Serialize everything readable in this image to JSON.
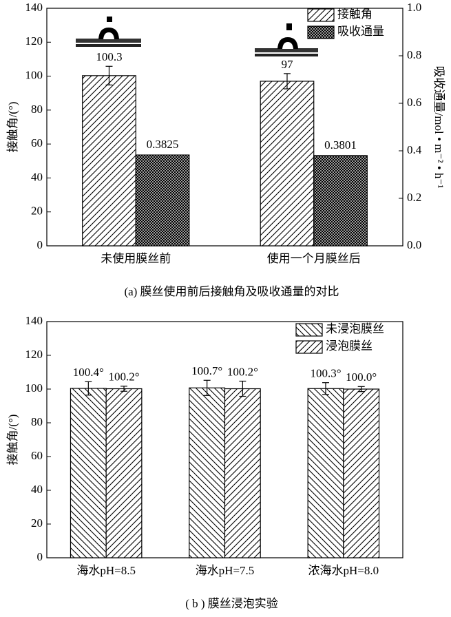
{
  "chart_data": [
    {
      "type": "bar",
      "caption": "(a) 膜丝使用前后接触角及吸收通量的对比",
      "ylabel": "接触角/(°)",
      "y2label": "吸收通量/mol • m⁻² • h⁻¹",
      "categories": [
        "未使用膜丝前",
        "使用一个月膜丝后"
      ],
      "series": [
        {
          "name": "接触角",
          "color": "#000000",
          "hatch": "/",
          "values": [
            100.3,
            97
          ],
          "errors": [
            5.5,
            4.5
          ]
        },
        {
          "name": "吸收通量",
          "color": "#000000",
          "hatch": "x",
          "axis": "y2",
          "values": [
            0.3825,
            0.3801
          ]
        }
      ],
      "ylim": [
        0,
        140
      ],
      "yticks": [
        0,
        20,
        40,
        60,
        80,
        100,
        120,
        140
      ],
      "y2lim": [
        0,
        1
      ],
      "y2ticks": [
        {
          "value": 0,
          "label": "0.0"
        },
        0.2,
        0.4,
        0.6,
        0.8,
        {
          "value": 1,
          "label": "1.0"
        }
      ],
      "legend": "upper right"
    },
    {
      "type": "bar",
      "caption": "( b ) 膜丝浸泡实验",
      "ylabel": "接触角/(°)",
      "categories": [
        "海水pH=8.5",
        "海水pH=7.5",
        "浓海水pH=8.0"
      ],
      "series": [
        {
          "name": "未浸泡膜丝",
          "color": "#000000",
          "hatch": "\\",
          "values": [
            100.4,
            100.7,
            100.3
          ],
          "value_labels": [
            "100.4°",
            "100.7°",
            "100.3°"
          ],
          "errors": [
            4,
            4.5,
            3.5
          ]
        },
        {
          "name": "浸泡膜丝",
          "color": "#000000",
          "hatch": "/",
          "values": [
            100.2,
            100.2,
            100.0
          ],
          "value_labels": [
            "100.2°",
            "100.2°",
            "100.0°"
          ],
          "errors": [
            1.5,
            4.5,
            1.5
          ]
        }
      ],
      "ylim": [
        0,
        140
      ],
      "yticks": [
        0,
        20,
        40,
        60,
        80,
        100,
        120,
        140
      ],
      "legend": "upper right"
    }
  ]
}
